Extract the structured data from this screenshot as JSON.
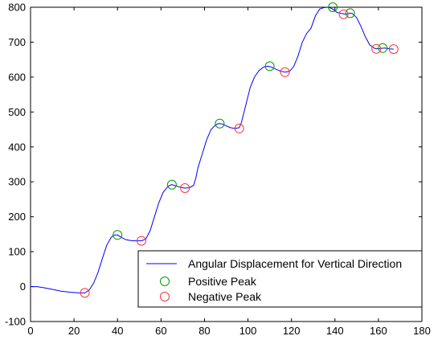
{
  "chart_data": {
    "type": "line",
    "title": "",
    "xlabel": "",
    "ylabel": "",
    "xlim": [
      0,
      180
    ],
    "ylim": [
      -100,
      800
    ],
    "xticks": [
      0,
      20,
      40,
      60,
      80,
      100,
      120,
      140,
      160,
      180
    ],
    "yticks": [
      -100,
      0,
      100,
      200,
      300,
      400,
      500,
      600,
      700,
      800
    ],
    "grid": false,
    "legend_position": "bottom-right",
    "series": [
      {
        "name": "Angular Displacement for Vertical Direction",
        "color": "#0000ff",
        "x": [
          0,
          3,
          6,
          10,
          14,
          18,
          22,
          25,
          27,
          29,
          31,
          33,
          35,
          37,
          38,
          39,
          40,
          42,
          44,
          46,
          48,
          51,
          53,
          55,
          57,
          59,
          61,
          63,
          64,
          65,
          66,
          68,
          70,
          71,
          73,
          75,
          76,
          77,
          79,
          81,
          83,
          85,
          86,
          87,
          88,
          90,
          92,
          94,
          96,
          97,
          99,
          101,
          103,
          105,
          107,
          108,
          109,
          110,
          111,
          113,
          115,
          117,
          119,
          121,
          123,
          125,
          127,
          129,
          131,
          133,
          135,
          137,
          139,
          141,
          143,
          145,
          147,
          148,
          150,
          152,
          154,
          156,
          158,
          159,
          161,
          163,
          165,
          167
        ],
        "y": [
          0,
          0,
          -3,
          -8,
          -13,
          -16,
          -18,
          -18,
          -10,
          10,
          40,
          80,
          118,
          140,
          146,
          148,
          148,
          140,
          134,
          132,
          131,
          131,
          136,
          160,
          200,
          240,
          270,
          285,
          290,
          292,
          290,
          286,
          283,
          282,
          283,
          290,
          310,
          340,
          380,
          420,
          450,
          462,
          466,
          467,
          466,
          460,
          455,
          453,
          455,
          470,
          520,
          570,
          600,
          618,
          628,
          630,
          631,
          630,
          628,
          622,
          617,
          614,
          616,
          630,
          660,
          700,
          725,
          740,
          775,
          795,
          799,
          800,
          795,
          785,
          782,
          780,
          783,
          782,
          770,
          745,
          715,
          692,
          683,
          681,
          682,
          683,
          681,
          680
        ]
      },
      {
        "name": "Positive Peak",
        "color": "#009900",
        "marker": "circle",
        "x": [
          40,
          65,
          87,
          110,
          139,
          147,
          162
        ],
        "y": [
          148,
          292,
          467,
          631,
          800,
          783,
          683
        ]
      },
      {
        "name": "Negative Peak",
        "color": "#ff3333",
        "marker": "circle",
        "x": [
          25,
          51,
          71,
          96,
          117,
          144,
          159,
          167
        ],
        "y": [
          -18,
          131,
          282,
          453,
          614,
          780,
          681,
          680
        ]
      }
    ]
  }
}
